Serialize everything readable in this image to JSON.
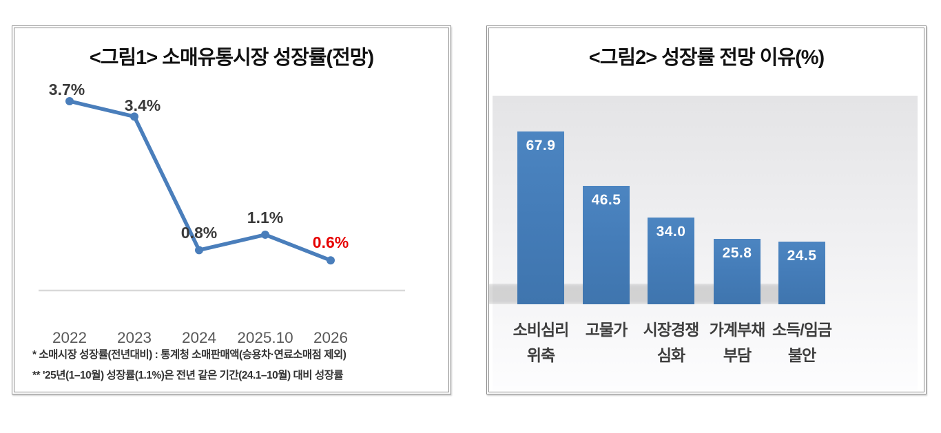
{
  "left_panel": {
    "title": "<그림1> 소매유통시장 성장률(전망)",
    "footnotes": [
      "* 소매시장 성장률(전년대비) : 통계청 소매판매액(승용차·연료소매점 제외)",
      "** '25년(1–10월) 성장률(1.1%)은 전년 같은 기간(24.1–10월) 대비 성장률"
    ]
  },
  "right_panel": {
    "title": "<그림2> 성장률 전망 이유(%)"
  },
  "chart_data": [
    {
      "type": "line",
      "title": "<그림1> 소매유통시장 성장률(전망)",
      "categories": [
        "2022",
        "2023",
        "2024",
        "2025.10",
        "2026"
      ],
      "values": [
        3.7,
        3.4,
        0.8,
        1.1,
        0.6
      ],
      "point_labels": [
        "3.7%",
        "3.4%",
        "0.8%",
        "1.1%",
        "0.6%"
      ],
      "point_label_colors": [
        "#3a3a3a",
        "#3a3a3a",
        "#3a3a3a",
        "#3a3a3a",
        "#e60000"
      ],
      "line_color": "#4a7ebb",
      "marker_color": "#4a7ebb",
      "axis_line_color": "#d9d9d9",
      "tick_label_color": "#595959",
      "xlabel": "",
      "ylabel": "",
      "ylim": [
        0,
        4.5
      ],
      "grid": false,
      "legend": "none"
    },
    {
      "type": "bar",
      "title": "<그림2> 성장률 전망 이유(%)",
      "categories": [
        "소비심리 위축",
        "고물가",
        "시장경쟁 심화",
        "가계부채 부담",
        "소득/임금 불안"
      ],
      "category_lines": [
        [
          "소비심리",
          "위축"
        ],
        [
          "고물가"
        ],
        [
          "시장경쟁",
          "심화"
        ],
        [
          "가계부채",
          "부담"
        ],
        [
          "소득/임금",
          "불안"
        ]
      ],
      "values": [
        67.9,
        46.5,
        34.0,
        25.8,
        24.5
      ],
      "value_labels": [
        "67.9",
        "46.5",
        "34.0",
        "25.8",
        "24.5"
      ],
      "bar_color": "#447cb8",
      "value_label_color": "#ffffff",
      "xlabel": "",
      "ylabel": "",
      "ylim": [
        0,
        75
      ],
      "grid": false,
      "legend": "none"
    }
  ]
}
